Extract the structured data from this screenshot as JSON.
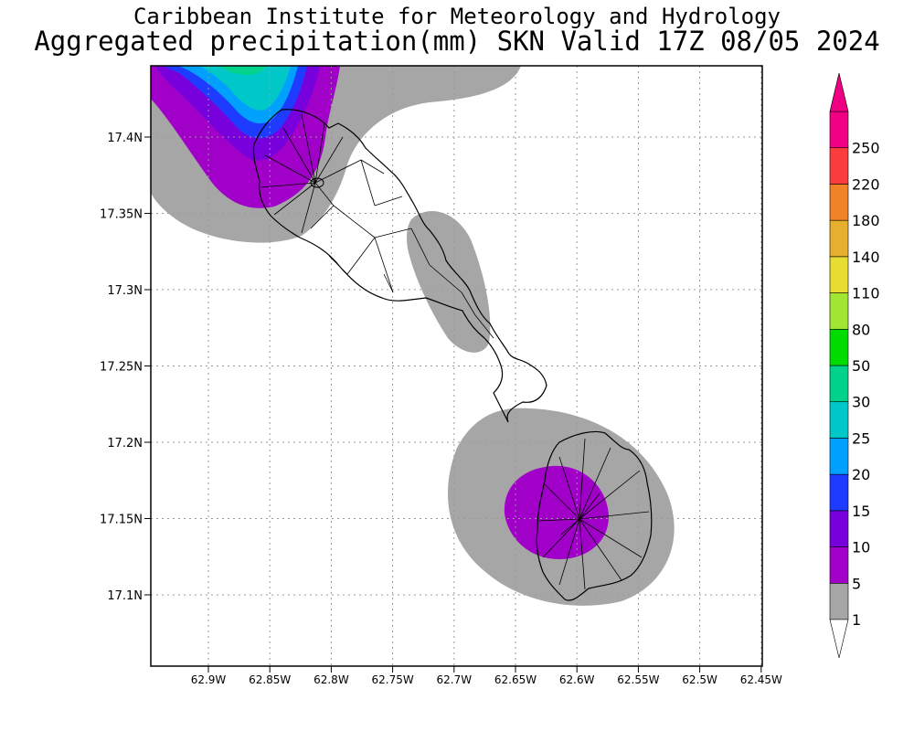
{
  "title": "Caribbean Institute for Meteorology and Hydrology",
  "subtitle": "Aggregated precipitation(mm) SKN Valid 17Z 08/05 2024",
  "map": {
    "lat_ticks": [
      "17.4N",
      "17.35N",
      "17.3N",
      "17.25N",
      "17.2N",
      "17.15N",
      "17.1N"
    ],
    "lon_ticks": [
      "62.9W",
      "62.85W",
      "62.8W",
      "62.75W",
      "62.7W",
      "62.65W",
      "62.6W",
      "62.55W",
      "62.5W",
      "62.45W"
    ],
    "islands": [
      "St. Kitts",
      "Nevis"
    ],
    "precip_colors": {
      "1-5": "#a6a6a6",
      "5-10": "#a000c8",
      "10-15": "#7800dc",
      "15-20": "#1e3cff",
      "20-25": "#00a0ff",
      "25-30": "#00c8c8",
      "30-50": "#00d28c"
    }
  },
  "colorbar": {
    "levels": [
      "1",
      "5",
      "10",
      "15",
      "20",
      "25",
      "30",
      "50",
      "80",
      "110",
      "140",
      "180",
      "220",
      "250"
    ],
    "colors": [
      "#a6a6a6",
      "#a000c8",
      "#7800dc",
      "#1e3cff",
      "#00a0ff",
      "#00c8c8",
      "#00d28c",
      "#00dc00",
      "#a0e632",
      "#e6dc32",
      "#e6af2d",
      "#f08228",
      "#fa3c3c",
      "#f00082"
    ]
  }
}
